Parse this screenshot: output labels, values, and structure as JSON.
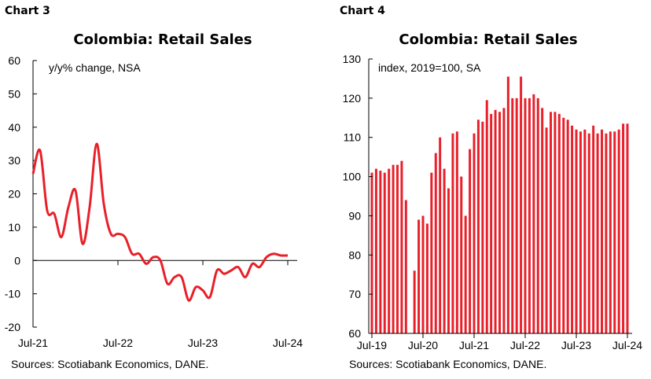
{
  "colors": {
    "series": "#e8202a",
    "axis": "#000000"
  },
  "chart_data": [
    {
      "chart_label": "Chart 3",
      "type": "line",
      "title": "Colombia: Retail Sales",
      "annotation": "y/y% change, NSA",
      "source": "Sources: Scotiabank Economics, DANE.",
      "ylim": [
        -20,
        60
      ],
      "y_ticks": [
        "60",
        "50",
        "40",
        "30",
        "20",
        "10",
        "0",
        "-10",
        "-20"
      ],
      "x_tick_labels": [
        "Jul-21",
        "Jul-22",
        "Jul-23",
        "Jul-24"
      ],
      "x_range": [
        "2021-07",
        "2024-07"
      ],
      "grid": false,
      "series": [
        {
          "dates": [
            "2021-07",
            "2021-08",
            "2021-09",
            "2021-10",
            "2021-11",
            "2021-12",
            "2022-01",
            "2022-02",
            "2022-03",
            "2022-04",
            "2022-05",
            "2022-06",
            "2022-07",
            "2022-08",
            "2022-09",
            "2022-10",
            "2022-11",
            "2022-12",
            "2023-01",
            "2023-02",
            "2023-03",
            "2023-04",
            "2023-05",
            "2023-06",
            "2023-07",
            "2023-08",
            "2023-09",
            "2023-10",
            "2023-11",
            "2023-12",
            "2024-01",
            "2024-02",
            "2024-03",
            "2024-04",
            "2024-05",
            "2024-06",
            "2024-07"
          ],
          "values": [
            26,
            33,
            15,
            14,
            7,
            16,
            21,
            5,
            16,
            35,
            17,
            8,
            8,
            7,
            2,
            2,
            -1,
            1,
            0,
            -7,
            -5,
            -5,
            -12,
            -8,
            -9,
            -11,
            -3,
            -4,
            -3,
            -2,
            -5,
            -1,
            -2,
            1,
            2,
            1.5,
            1.5
          ]
        }
      ]
    },
    {
      "chart_label": "Chart 4",
      "type": "bar",
      "title": "Colombia: Retail Sales",
      "annotation": "index, 2019=100, SA",
      "source": "Sources: Scotiabank Economics, DANE.",
      "ylim": [
        60,
        130
      ],
      "y_ticks": [
        "130",
        "120",
        "110",
        "100",
        "90",
        "80",
        "70",
        "60"
      ],
      "x_tick_labels": [
        "Jul-19",
        "Jul-20",
        "Jul-21",
        "Jul-22",
        "Jul-23",
        "Jul-24"
      ],
      "x_range": [
        "2019-07",
        "2024-07"
      ],
      "grid": false,
      "series": [
        {
          "start": "2019-07",
          "values": [
            101,
            102,
            101.5,
            101,
            102,
            103,
            103,
            104,
            94,
            60,
            76,
            89,
            90,
            88,
            101,
            106,
            110,
            102,
            97,
            111,
            111.5,
            100,
            90,
            107,
            111,
            114.5,
            114,
            119.5,
            116,
            117,
            116.5,
            117.5,
            125.5,
            120,
            120,
            125.5,
            120,
            120,
            121,
            120,
            117.5,
            112.5,
            116.5,
            116.5,
            116,
            115,
            114.5,
            113,
            112,
            111.5,
            112,
            111,
            113,
            111,
            112,
            111,
            111.5,
            111.5,
            112,
            113.5,
            113.5
          ]
        }
      ]
    }
  ]
}
